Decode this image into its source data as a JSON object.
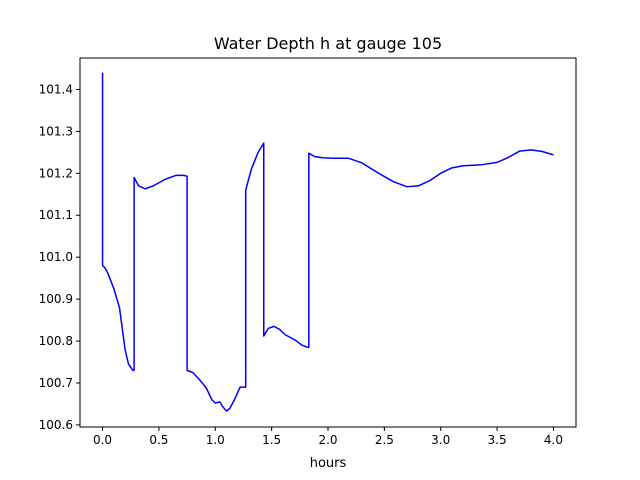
{
  "chart_data": {
    "type": "line",
    "title": "Water Depth h at gauge 105",
    "xlabel": "hours",
    "ylabel": "",
    "xlim": [
      -0.2,
      4.2
    ],
    "ylim": [
      100.595,
      101.475
    ],
    "x_ticks": [
      0.0,
      0.5,
      1.0,
      1.5,
      2.0,
      2.5,
      3.0,
      3.5,
      4.0
    ],
    "x_tick_labels": [
      "0.0",
      "0.5",
      "1.0",
      "1.5",
      "2.0",
      "2.5",
      "3.0",
      "3.5",
      "4.0"
    ],
    "y_ticks": [
      100.6,
      100.7,
      100.8,
      100.9,
      101.0,
      101.1,
      101.2,
      101.3,
      101.4
    ],
    "y_tick_labels": [
      "100.6",
      "100.7",
      "100.8",
      "100.9",
      "101.0",
      "101.1",
      "101.2",
      "101.3",
      "101.4"
    ],
    "grid": false,
    "series": [
      {
        "color": "#0000ff",
        "x": [
          0.0,
          0.0,
          0.02,
          0.05,
          0.1,
          0.15,
          0.2,
          0.23,
          0.27,
          0.28,
          0.28,
          0.32,
          0.38,
          0.45,
          0.55,
          0.65,
          0.72,
          0.75,
          0.75,
          0.8,
          0.86,
          0.92,
          0.97,
          1.0,
          1.04,
          1.07,
          1.1,
          1.13,
          1.17,
          1.22,
          1.27,
          1.27,
          1.32,
          1.38,
          1.43,
          1.43,
          1.47,
          1.52,
          1.57,
          1.62,
          1.67,
          1.72,
          1.77,
          1.82,
          1.83,
          1.83,
          1.88,
          1.95,
          2.05,
          2.18,
          2.3,
          2.45,
          2.58,
          2.7,
          2.8,
          2.9,
          3.0,
          3.1,
          3.2,
          3.35,
          3.5,
          3.6,
          3.7,
          3.8,
          3.9,
          4.0
        ],
        "y": [
          101.44,
          100.98,
          100.975,
          100.96,
          100.925,
          100.88,
          100.78,
          100.745,
          100.73,
          100.73,
          101.19,
          101.17,
          101.163,
          101.17,
          101.185,
          101.195,
          101.195,
          101.193,
          100.73,
          100.725,
          100.708,
          100.688,
          100.66,
          100.652,
          100.655,
          100.642,
          100.633,
          100.64,
          100.66,
          100.69,
          100.69,
          101.16,
          101.21,
          101.25,
          101.272,
          100.812,
          100.83,
          100.835,
          100.828,
          100.815,
          100.808,
          100.8,
          100.79,
          100.785,
          100.785,
          101.248,
          101.24,
          101.237,
          101.236,
          101.236,
          101.225,
          101.2,
          101.18,
          101.168,
          101.17,
          101.182,
          101.2,
          101.213,
          101.218,
          101.22,
          101.226,
          101.238,
          101.253,
          101.256,
          101.252,
          101.244
        ]
      }
    ]
  }
}
